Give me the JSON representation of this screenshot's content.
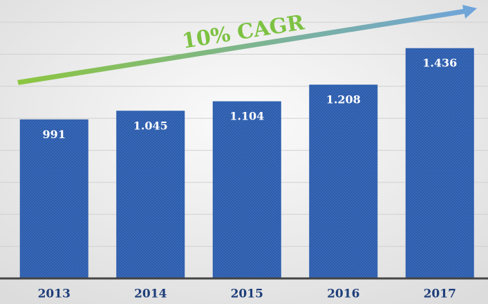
{
  "chart_data": {
    "type": "bar",
    "annotation": "10% CAGR",
    "categories": [
      "2013",
      "2014",
      "2015",
      "2016",
      "2017"
    ],
    "values": [
      991,
      1045,
      1104,
      1208,
      1436
    ],
    "value_labels": [
      "991",
      "1.045",
      "1.104",
      "1.208",
      "1.436"
    ],
    "color": "#2f5fae",
    "ylim": [
      0,
      1700
    ],
    "yticks": [
      0,
      200,
      400,
      600,
      800,
      1000,
      1200,
      1400,
      1600
    ],
    "grid": true
  }
}
